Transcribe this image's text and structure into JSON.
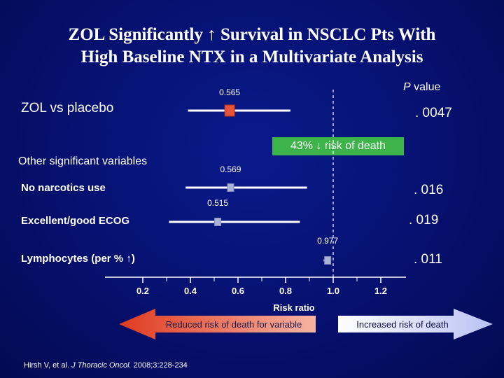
{
  "title_line1": "ZOL Significantly ↑ Survival in NSCLC Pts With",
  "title_line2": "High Baseline NTX in a Multivariate Analysis",
  "pvalue_header_italic": "P",
  "pvalue_header_rest": " value",
  "comparison_label": "ZOL vs placebo",
  "other_label": "Other significant variables",
  "callout": "43% ↓ risk of death",
  "arrows": {
    "left_label": "Reduced risk of death for variable",
    "right_label": "Increased risk of death"
  },
  "citation_authors": "Hirsh V, et al. ",
  "citation_journal": "J Thoracic Oncol.",
  "citation_rest": " 2008;3:228-234",
  "colors": {
    "background": "#06106e",
    "main_marker": "#e8543a",
    "other_marker": "#a9b3d6",
    "callout_bg": "#3cb44a",
    "reference_line": "#ffffff"
  },
  "chart_data": {
    "type": "forest",
    "xlabel": "Risk ratio",
    "xticks": [
      "0.2",
      "0.4",
      "0.6",
      "0.8",
      "1.0",
      "1.2"
    ],
    "xlim": [
      0.2,
      1.2
    ],
    "reference_value": 1.0,
    "rows": [
      {
        "label": "ZOL vs placebo",
        "hr": 0.565,
        "hr_label": "0.565",
        "ci_low": 0.39,
        "ci_high": 0.82,
        "p_value": ". 0047"
      },
      {
        "label": "No narcotics use",
        "hr": 0.569,
        "hr_label": "0.569",
        "ci_low": 0.38,
        "ci_high": 0.89,
        "p_value": ". 016"
      },
      {
        "label": "Excellent/good ECOG",
        "hr": 0.515,
        "hr_label": "0.515",
        "ci_low": 0.31,
        "ci_high": 0.86,
        "p_value": ". 019"
      },
      {
        "label": "Lymphocytes (per % ↑)",
        "hr": 0.977,
        "hr_label": "0.977",
        "ci_low": 0.96,
        "ci_high": 0.99,
        "p_value": ". 011"
      }
    ]
  }
}
